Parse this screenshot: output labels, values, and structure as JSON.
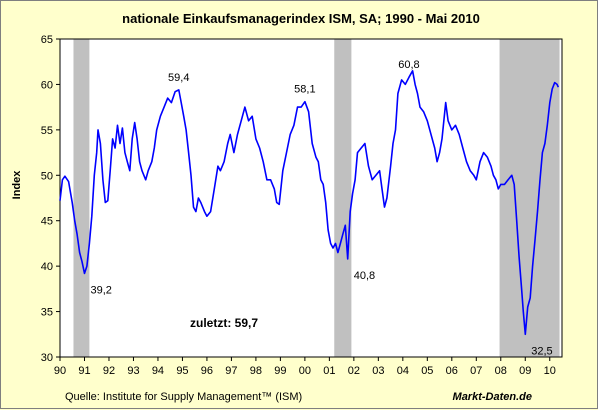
{
  "chart_data": {
    "type": "line",
    "title": "nationale Einkaufsmanagerindex ISM, SA; 1990 - Mai 2010",
    "ylabel": "Index",
    "xlabel": "",
    "ylim": [
      30,
      65
    ],
    "xlim": [
      1990.0,
      2010.5
    ],
    "yticks": [
      "30",
      "35",
      "40",
      "45",
      "50",
      "55",
      "60",
      "65"
    ],
    "xticks": [
      "90",
      "91",
      "92",
      "93",
      "94",
      "95",
      "96",
      "97",
      "98",
      "99",
      "00",
      "01",
      "02",
      "03",
      "04",
      "05",
      "06",
      "07",
      "08",
      "09",
      "10"
    ],
    "grid": false,
    "recessions": [
      [
        1990.55,
        1991.2
      ],
      [
        2001.2,
        2001.9
      ],
      [
        2007.95,
        2010.4
      ]
    ],
    "series": [
      {
        "color": "#0000ff",
        "points": [
          [
            1990.0,
            47.2
          ],
          [
            1990.1,
            49.5
          ],
          [
            1990.2,
            49.9
          ],
          [
            1990.35,
            49.3
          ],
          [
            1990.5,
            47.0
          ],
          [
            1990.6,
            45.0
          ],
          [
            1990.7,
            43.5
          ],
          [
            1990.8,
            41.5
          ],
          [
            1990.9,
            40.5
          ],
          [
            1991.0,
            39.2
          ],
          [
            1991.1,
            40.0
          ],
          [
            1991.2,
            42.5
          ],
          [
            1991.3,
            45.5
          ],
          [
            1991.4,
            50.0
          ],
          [
            1991.5,
            52.5
          ],
          [
            1991.55,
            55.0
          ],
          [
            1991.65,
            53.5
          ],
          [
            1991.75,
            49.5
          ],
          [
            1991.85,
            47.0
          ],
          [
            1991.95,
            47.2
          ],
          [
            1992.05,
            50.5
          ],
          [
            1992.15,
            54.0
          ],
          [
            1992.25,
            53.0
          ],
          [
            1992.35,
            55.5
          ],
          [
            1992.45,
            53.5
          ],
          [
            1992.55,
            55.2
          ],
          [
            1992.65,
            52.5
          ],
          [
            1992.75,
            51.5
          ],
          [
            1992.85,
            50.5
          ],
          [
            1992.95,
            54.0
          ],
          [
            1993.05,
            55.8
          ],
          [
            1993.15,
            54.0
          ],
          [
            1993.25,
            51.5
          ],
          [
            1993.35,
            50.5
          ],
          [
            1993.5,
            49.5
          ],
          [
            1993.6,
            50.5
          ],
          [
            1993.75,
            51.5
          ],
          [
            1993.85,
            53.0
          ],
          [
            1993.95,
            55.0
          ],
          [
            1994.1,
            56.5
          ],
          [
            1994.25,
            57.5
          ],
          [
            1994.4,
            58.5
          ],
          [
            1994.55,
            58.0
          ],
          [
            1994.7,
            59.2
          ],
          [
            1994.85,
            59.4
          ],
          [
            1994.95,
            58.0
          ],
          [
            1995.05,
            56.5
          ],
          [
            1995.15,
            55.0
          ],
          [
            1995.25,
            52.5
          ],
          [
            1995.35,
            50.0
          ],
          [
            1995.45,
            46.5
          ],
          [
            1995.55,
            46.0
          ],
          [
            1995.65,
            47.5
          ],
          [
            1995.75,
            47.0
          ],
          [
            1995.9,
            46.0
          ],
          [
            1996.0,
            45.5
          ],
          [
            1996.15,
            46.0
          ],
          [
            1996.3,
            48.5
          ],
          [
            1996.45,
            51.0
          ],
          [
            1996.55,
            50.5
          ],
          [
            1996.7,
            51.5
          ],
          [
            1996.85,
            53.5
          ],
          [
            1996.95,
            54.5
          ],
          [
            1997.1,
            52.5
          ],
          [
            1997.25,
            54.5
          ],
          [
            1997.4,
            56.0
          ],
          [
            1997.55,
            57.5
          ],
          [
            1997.7,
            56.0
          ],
          [
            1997.85,
            56.5
          ],
          [
            1998.0,
            54.0
          ],
          [
            1998.15,
            53.0
          ],
          [
            1998.3,
            51.5
          ],
          [
            1998.45,
            49.5
          ],
          [
            1998.6,
            49.5
          ],
          [
            1998.75,
            48.5
          ],
          [
            1998.85,
            47.0
          ],
          [
            1998.95,
            46.8
          ],
          [
            1999.1,
            50.5
          ],
          [
            1999.25,
            52.5
          ],
          [
            1999.4,
            54.5
          ],
          [
            1999.55,
            55.5
          ],
          [
            1999.7,
            57.5
          ],
          [
            1999.85,
            57.5
          ],
          [
            2000.0,
            58.1
          ],
          [
            2000.15,
            57.0
          ],
          [
            2000.3,
            53.5
          ],
          [
            2000.45,
            52.0
          ],
          [
            2000.55,
            51.5
          ],
          [
            2000.65,
            49.5
          ],
          [
            2000.75,
            49.0
          ],
          [
            2000.85,
            47.0
          ],
          [
            2000.95,
            44.0
          ],
          [
            2001.05,
            42.5
          ],
          [
            2001.15,
            42.0
          ],
          [
            2001.25,
            42.5
          ],
          [
            2001.35,
            41.5
          ],
          [
            2001.45,
            42.5
          ],
          [
            2001.55,
            43.5
          ],
          [
            2001.65,
            44.5
          ],
          [
            2001.75,
            40.8
          ],
          [
            2001.85,
            46.0
          ],
          [
            2001.95,
            48.0
          ],
          [
            2002.05,
            49.5
          ],
          [
            2002.15,
            52.5
          ],
          [
            2002.3,
            53.0
          ],
          [
            2002.45,
            53.5
          ],
          [
            2002.6,
            51.0
          ],
          [
            2002.75,
            49.5
          ],
          [
            2002.9,
            50.0
          ],
          [
            2003.05,
            50.5
          ],
          [
            2003.15,
            48.5
          ],
          [
            2003.25,
            46.5
          ],
          [
            2003.35,
            47.5
          ],
          [
            2003.5,
            51.0
          ],
          [
            2003.6,
            53.5
          ],
          [
            2003.7,
            55.0
          ],
          [
            2003.8,
            59.0
          ],
          [
            2003.95,
            60.5
          ],
          [
            2004.1,
            60.0
          ],
          [
            2004.25,
            60.8
          ],
          [
            2004.4,
            61.5
          ],
          [
            2004.5,
            60.0
          ],
          [
            2004.6,
            59.0
          ],
          [
            2004.7,
            57.5
          ],
          [
            2004.85,
            57.0
          ],
          [
            2005.0,
            56.0
          ],
          [
            2005.15,
            54.5
          ],
          [
            2005.3,
            53.0
          ],
          [
            2005.4,
            51.5
          ],
          [
            2005.5,
            52.5
          ],
          [
            2005.6,
            54.0
          ],
          [
            2005.75,
            58.0
          ],
          [
            2005.85,
            56.0
          ],
          [
            2006.0,
            55.0
          ],
          [
            2006.15,
            55.5
          ],
          [
            2006.3,
            54.5
          ],
          [
            2006.45,
            53.0
          ],
          [
            2006.6,
            51.5
          ],
          [
            2006.75,
            50.5
          ],
          [
            2006.9,
            50.0
          ],
          [
            2007.0,
            49.5
          ],
          [
            2007.15,
            51.5
          ],
          [
            2007.3,
            52.5
          ],
          [
            2007.45,
            52.0
          ],
          [
            2007.6,
            51.0
          ],
          [
            2007.7,
            50.0
          ],
          [
            2007.8,
            49.5
          ],
          [
            2007.9,
            48.5
          ],
          [
            2008.0,
            49.0
          ],
          [
            2008.15,
            49.0
          ],
          [
            2008.3,
            49.5
          ],
          [
            2008.45,
            50.0
          ],
          [
            2008.55,
            49.0
          ],
          [
            2008.65,
            45.0
          ],
          [
            2008.75,
            41.0
          ],
          [
            2008.85,
            37.5
          ],
          [
            2008.92,
            35.0
          ],
          [
            2009.0,
            32.5
          ],
          [
            2009.1,
            35.5
          ],
          [
            2009.2,
            36.5
          ],
          [
            2009.3,
            40.0
          ],
          [
            2009.4,
            43.0
          ],
          [
            2009.5,
            46.0
          ],
          [
            2009.6,
            49.5
          ],
          [
            2009.7,
            52.5
          ],
          [
            2009.8,
            53.5
          ],
          [
            2009.9,
            55.5
          ],
          [
            2010.0,
            58.0
          ],
          [
            2010.1,
            59.5
          ],
          [
            2010.2,
            60.2
          ],
          [
            2010.3,
            60.0
          ],
          [
            2010.35,
            59.7
          ]
        ]
      }
    ],
    "annotations": [
      {
        "text": "59,4",
        "x": 1994.85,
        "y": 59.4
      },
      {
        "text": "39,2",
        "x": 1991.0,
        "y": 39.2
      },
      {
        "text": "58,1",
        "x": 2000.0,
        "y": 58.1
      },
      {
        "text": "40,8",
        "x": 2001.75,
        "y": 40.8
      },
      {
        "text": "60,8",
        "x": 2004.25,
        "y": 60.8
      },
      {
        "text": "32,5",
        "x": 2009.0,
        "y": 32.5
      }
    ],
    "last_value_label": "zuletzt: 59,7"
  },
  "colors": {
    "background": "#ffffcc",
    "plot_background": "#ffffff",
    "recession": "#c0c0c0",
    "line": "#0000ff"
  },
  "footer": {
    "source": "Quelle: Institute for Supply Management™ (ISM)",
    "brand": "Markt-Daten.de"
  }
}
